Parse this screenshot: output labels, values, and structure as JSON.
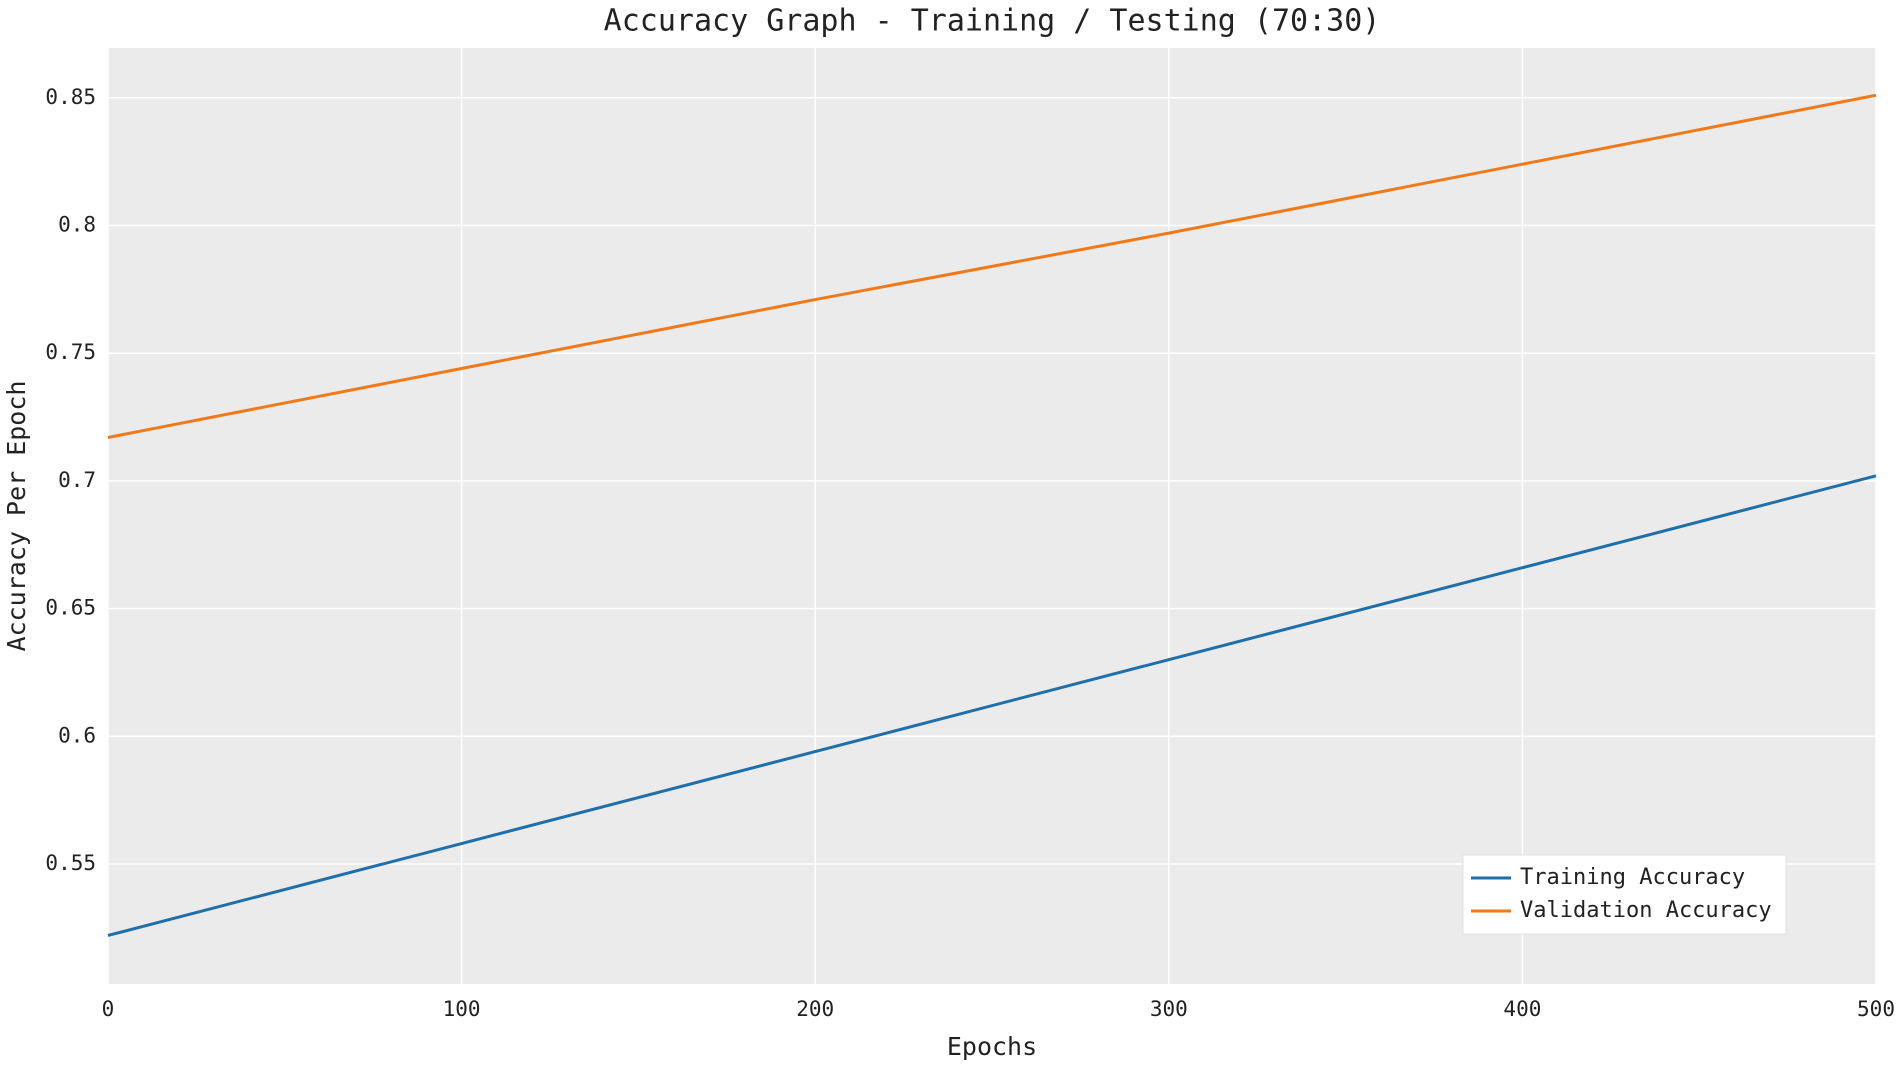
{
  "chart_data": {
    "type": "line",
    "title": "Accuracy Graph - Training / Testing (70:30)",
    "x_label": "Epochs",
    "y_label": "Accuracy Per Epoch",
    "x": [
      0,
      100,
      200,
      300,
      400,
      500
    ],
    "series": [
      {
        "name": "Training Accuracy",
        "color": "#1f6fab",
        "values": [
          0.522,
          0.558,
          0.594,
          0.63,
          0.666,
          0.702
        ]
      },
      {
        "name": "Validation Accuracy",
        "color": "#f07a1a",
        "values": [
          0.717,
          0.744,
          0.771,
          0.797,
          0.824,
          0.851
        ]
      }
    ],
    "xlim": [
      0,
      500
    ],
    "xticks": [
      0,
      100,
      200,
      300,
      400,
      500
    ],
    "ylim": [
      0.503,
      0.8695
    ],
    "yticks": [
      0.55,
      0.6,
      0.65,
      0.7,
      0.75,
      0.8,
      0.85
    ],
    "grid": true,
    "legend": "lower right"
  }
}
